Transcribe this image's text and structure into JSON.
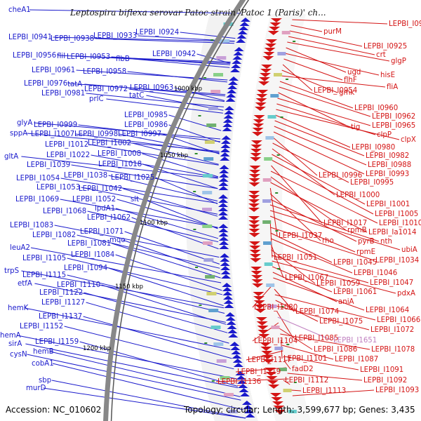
{
  "title": "Leptospira biflexa serovar Patoc strain 'Patoc 1 (Paris)' ch...",
  "footer": {
    "accession": "Accession: NC_010602",
    "topology": "Topology: circular; Length: 3,599,677 bp; Genes: 3,435"
  },
  "colors": {
    "left_strand": "#1a1acc",
    "right_strand": "#d41515",
    "backbone": "#888888",
    "tick_mark": "#2a8a2a",
    "highlight_label": "#c080c0"
  },
  "scale_labels": [
    "1000 kbp",
    "1050 kbp",
    "1100 kbp",
    "1150 kbp",
    "1200 kbp"
  ],
  "left_labels": [
    "cheA1",
    "LEPBI_I0941",
    "LEPBI_I0938",
    "LEPBI_I0933",
    "LEPBI_I0924",
    "LEPBI_I0956",
    "fliI",
    "LEPBI_I0953",
    "flbB",
    "LEPBI_I0942",
    "LEPBI_I0961",
    "LEPBI_I0958",
    "LEPBI_I0976",
    "tatA",
    "LEPBI_I0972",
    "LEPBI_I0963",
    "LEPBI_I0981",
    "prlC",
    "tatC",
    "LEPBI_I0985",
    "glyA",
    "LEPBI_I0999",
    "LEPBI_I0986",
    "sppA",
    "LEPBI_I1007",
    "LEPBI_I0998",
    "LEPBI_I0997",
    "LEPBI_I1012",
    "LEPBI_I1002",
    "gltA",
    "LEPBI_I1022",
    "LEPBI_I1008",
    "LEPBI_I1039",
    "LEPBI_I1018",
    "LEPBI_I1054",
    "LEPBI_I1038",
    "LEPBI_I1025",
    "LEPBI_I1053",
    "LEPBI_I1042",
    "LEPBI_I1069",
    "LEPBI_I1052",
    "slt",
    "lpdA1",
    "LEPBI_I1068",
    "LEPBI_I1062",
    "LEPBI_I1083",
    "LEPBI_I1071",
    "LEPBI_I1082",
    "mqo",
    "LEPBI_I1081",
    "leuA2",
    "LEPBI_I1084",
    "LEPBI_I1105",
    "trpS",
    "LEPBI_I1094",
    "LEPBI_I1115",
    "etfA",
    "LEPBI_I1110",
    "LEPBI_I1122",
    "LEPBI_I1127",
    "hemK",
    "LEPBI_I1137",
    "LEPBI_I1152",
    "hemA",
    "sirA",
    "LEPBI_I1159",
    "hemB",
    "cysN",
    "cobA1",
    "sbp",
    "murD"
  ],
  "right_labels": [
    "LEPBI_I0911",
    "purM",
    "LEPBI_I0925",
    "crt",
    "glgP",
    "ugd",
    "hisE",
    "flhF",
    "LEPBI_I0954",
    "gmk",
    "fliA",
    "LEPBI_I0960",
    "LEPBI_I0962",
    "tig",
    "LEPBI_I0965",
    "clpP",
    "clpX",
    "LEPBI_I0980",
    "LEPBI_I0982",
    "LEPBI_I0988",
    "LEPBI_I0993",
    "LEPBI_I0996",
    "LEPBI_I0995",
    "LEPBI_I1000",
    "LEPBI_I1001",
    "LEPBI_I1005",
    "LEPBI_I1017",
    "LEPBI_I1010",
    "rpmB",
    "LEPBI_Ia1014",
    "LEPBI_I1037",
    "rho",
    "pyrB",
    "nth",
    "ubiA",
    "rpmE",
    "LEPBI_I1051",
    "LEPBI_I1034",
    "LEPBI_I1045",
    "LEPBI_I1046",
    "LEPBI_I1067",
    "LEPBI_I1059",
    "LEPBI_I1047",
    "pdxA",
    "LEPBI_I1061",
    "aniA",
    "LEPBI_I1064",
    "LEPBI_I1080",
    "LEPBI_I1074",
    "LEPBI_I1066",
    "LEPBI_I1075",
    "LEPBI_I1072",
    "LEPBI_I1085",
    "LEPBI_I1651",
    "LEPBI_I1104",
    "LEPBI_I1086",
    "LEPBI_I1078",
    "LEPBI_I1101",
    "LEPBI_I1087",
    "LEPBI_I1117",
    "LEPBI_I1091",
    "fadD2",
    "LEPBI_I1119",
    "LEPBI_I1092",
    "LEPBI_I1136",
    "LEPBI_I1112",
    "LEPBI_I1113",
    "LEPBI_I1093"
  ]
}
